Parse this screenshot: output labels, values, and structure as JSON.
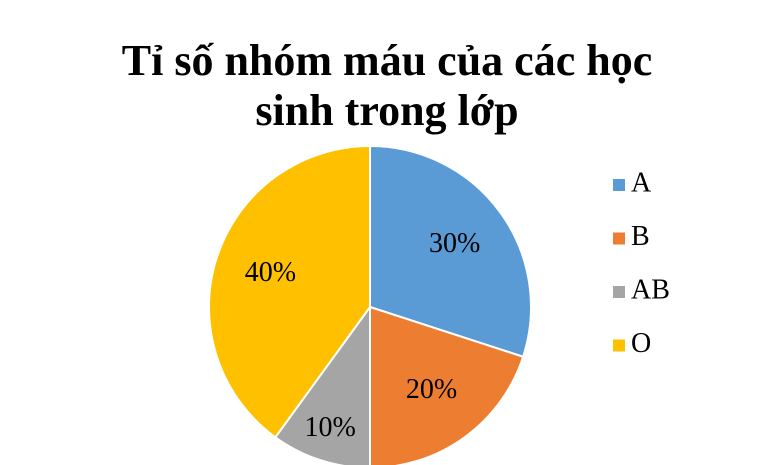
{
  "chart_data": {
    "type": "pie",
    "title": "Tỉ số nhóm máu của các học sinh trong lớp",
    "categories": [
      "A",
      "B",
      "AB",
      "O"
    ],
    "values": [
      30,
      20,
      10,
      40
    ],
    "value_labels": [
      "30%",
      "20%",
      "10%",
      "40%"
    ],
    "colors": [
      "#5b9bd5",
      "#ed7d31",
      "#a5a5a5",
      "#ffc000"
    ],
    "legend": "right"
  }
}
